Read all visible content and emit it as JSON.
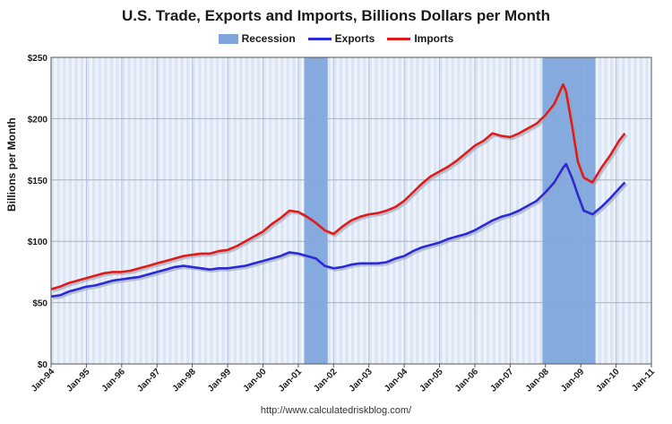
{
  "chart_data": {
    "type": "line",
    "title": "U.S. Trade, Exports and Imports, Billions Dollars per Month",
    "ylabel": "Billions per Month",
    "xlabel": "",
    "ylim": [
      0,
      250
    ],
    "xlim": [
      "1994-01",
      "2011-01"
    ],
    "yticks": [
      "$0",
      "$50",
      "$100",
      "$150",
      "$200",
      "$250"
    ],
    "ytick_values": [
      0,
      50,
      100,
      150,
      200,
      250
    ],
    "xticks": [
      "Jan-94",
      "Jan-95",
      "Jan-96",
      "Jan-97",
      "Jan-98",
      "Jan-99",
      "Jan-00",
      "Jan-01",
      "Jan-02",
      "Jan-03",
      "Jan-04",
      "Jan-05",
      "Jan-06",
      "Jan-07",
      "Jan-08",
      "Jan-09",
      "Jan-10",
      "Jan-11"
    ],
    "grid": true,
    "legend": {
      "placement": "top",
      "entries": [
        {
          "label": "Recession",
          "kind": "box",
          "color": "#7fa6dc"
        },
        {
          "label": "Exports",
          "kind": "line",
          "color": "#2a2ad6"
        },
        {
          "label": "Imports",
          "kind": "line",
          "color": "#e01b1b"
        }
      ]
    },
    "recessions": [
      {
        "start": "2001-03",
        "end": "2001-11"
      },
      {
        "start": "2007-12",
        "end": "2009-06"
      }
    ],
    "series": [
      {
        "name": "Exports",
        "color": "#2a2ad6",
        "points": [
          [
            "1994-01",
            55
          ],
          [
            "1994-04",
            56
          ],
          [
            "1994-07",
            59
          ],
          [
            "1994-10",
            61
          ],
          [
            "1995-01",
            63
          ],
          [
            "1995-04",
            64
          ],
          [
            "1995-07",
            66
          ],
          [
            "1995-10",
            68
          ],
          [
            "1996-01",
            69
          ],
          [
            "1996-04",
            70
          ],
          [
            "1996-07",
            71
          ],
          [
            "1996-10",
            73
          ],
          [
            "1997-01",
            75
          ],
          [
            "1997-04",
            77
          ],
          [
            "1997-07",
            79
          ],
          [
            "1997-10",
            80
          ],
          [
            "1998-01",
            79
          ],
          [
            "1998-04",
            78
          ],
          [
            "1998-07",
            77
          ],
          [
            "1998-10",
            78
          ],
          [
            "1999-01",
            78
          ],
          [
            "1999-04",
            79
          ],
          [
            "1999-07",
            80
          ],
          [
            "1999-10",
            82
          ],
          [
            "2000-01",
            84
          ],
          [
            "2000-04",
            86
          ],
          [
            "2000-07",
            88
          ],
          [
            "2000-10",
            91
          ],
          [
            "2001-01",
            90
          ],
          [
            "2001-04",
            88
          ],
          [
            "2001-07",
            86
          ],
          [
            "2001-10",
            80
          ],
          [
            "2002-01",
            78
          ],
          [
            "2002-04",
            79
          ],
          [
            "2002-07",
            81
          ],
          [
            "2002-10",
            82
          ],
          [
            "2003-01",
            82
          ],
          [
            "2003-04",
            82
          ],
          [
            "2003-07",
            83
          ],
          [
            "2003-10",
            86
          ],
          [
            "2004-01",
            88
          ],
          [
            "2004-04",
            92
          ],
          [
            "2004-07",
            95
          ],
          [
            "2004-10",
            97
          ],
          [
            "2005-01",
            99
          ],
          [
            "2005-04",
            102
          ],
          [
            "2005-07",
            104
          ],
          [
            "2005-10",
            106
          ],
          [
            "2006-01",
            109
          ],
          [
            "2006-04",
            113
          ],
          [
            "2006-07",
            117
          ],
          [
            "2006-10",
            120
          ],
          [
            "2007-01",
            122
          ],
          [
            "2007-04",
            125
          ],
          [
            "2007-07",
            129
          ],
          [
            "2007-10",
            133
          ],
          [
            "2008-01",
            140
          ],
          [
            "2008-04",
            148
          ],
          [
            "2008-07",
            160
          ],
          [
            "2008-08",
            163
          ],
          [
            "2008-10",
            152
          ],
          [
            "2008-12",
            138
          ],
          [
            "2009-02",
            125
          ],
          [
            "2009-05",
            122
          ],
          [
            "2009-08",
            128
          ],
          [
            "2009-11",
            135
          ],
          [
            "2010-02",
            143
          ],
          [
            "2010-04",
            148
          ]
        ]
      },
      {
        "name": "Imports",
        "color": "#e01b1b",
        "points": [
          [
            "1994-01",
            61
          ],
          [
            "1994-04",
            63
          ],
          [
            "1994-07",
            66
          ],
          [
            "1994-10",
            68
          ],
          [
            "1995-01",
            70
          ],
          [
            "1995-04",
            72
          ],
          [
            "1995-07",
            74
          ],
          [
            "1995-10",
            75
          ],
          [
            "1996-01",
            75
          ],
          [
            "1996-04",
            76
          ],
          [
            "1996-07",
            78
          ],
          [
            "1996-10",
            80
          ],
          [
            "1997-01",
            82
          ],
          [
            "1997-04",
            84
          ],
          [
            "1997-07",
            86
          ],
          [
            "1997-10",
            88
          ],
          [
            "1998-01",
            89
          ],
          [
            "1998-04",
            90
          ],
          [
            "1998-07",
            90
          ],
          [
            "1998-10",
            92
          ],
          [
            "1999-01",
            93
          ],
          [
            "1999-04",
            96
          ],
          [
            "1999-07",
            100
          ],
          [
            "1999-10",
            104
          ],
          [
            "2000-01",
            108
          ],
          [
            "2000-04",
            114
          ],
          [
            "2000-07",
            119
          ],
          [
            "2000-10",
            125
          ],
          [
            "2001-01",
            124
          ],
          [
            "2001-04",
            120
          ],
          [
            "2001-07",
            115
          ],
          [
            "2001-10",
            109
          ],
          [
            "2002-01",
            106
          ],
          [
            "2002-04",
            112
          ],
          [
            "2002-07",
            117
          ],
          [
            "2002-10",
            120
          ],
          [
            "2003-01",
            122
          ],
          [
            "2003-04",
            123
          ],
          [
            "2003-07",
            125
          ],
          [
            "2003-10",
            128
          ],
          [
            "2004-01",
            133
          ],
          [
            "2004-04",
            140
          ],
          [
            "2004-07",
            147
          ],
          [
            "2004-10",
            153
          ],
          [
            "2005-01",
            157
          ],
          [
            "2005-04",
            161
          ],
          [
            "2005-07",
            166
          ],
          [
            "2005-10",
            172
          ],
          [
            "2006-01",
            178
          ],
          [
            "2006-04",
            182
          ],
          [
            "2006-07",
            188
          ],
          [
            "2006-10",
            186
          ],
          [
            "2007-01",
            185
          ],
          [
            "2007-04",
            188
          ],
          [
            "2007-07",
            192
          ],
          [
            "2007-10",
            196
          ],
          [
            "2008-01",
            203
          ],
          [
            "2008-04",
            212
          ],
          [
            "2008-07",
            228
          ],
          [
            "2008-08",
            222
          ],
          [
            "2008-10",
            195
          ],
          [
            "2008-12",
            165
          ],
          [
            "2009-02",
            152
          ],
          [
            "2009-05",
            148
          ],
          [
            "2009-08",
            160
          ],
          [
            "2009-11",
            170
          ],
          [
            "2010-02",
            182
          ],
          [
            "2010-04",
            188
          ]
        ]
      }
    ]
  },
  "footer": {
    "source": "http://www.calculatedriskblog.com/"
  }
}
